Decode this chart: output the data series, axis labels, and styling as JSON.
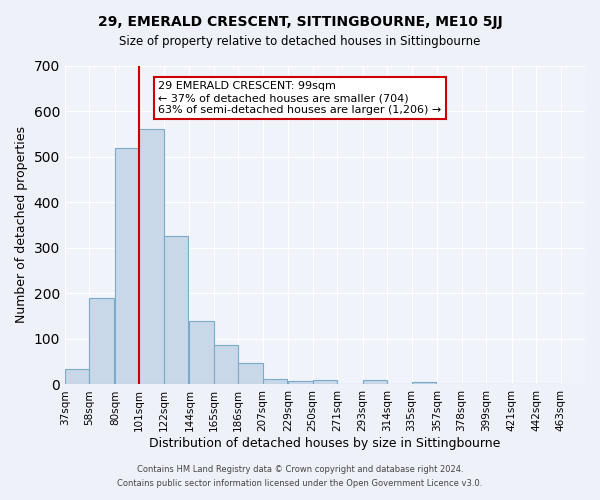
{
  "title": "29, EMERALD CRESCENT, SITTINGBOURNE, ME10 5JJ",
  "subtitle": "Size of property relative to detached houses in Sittingbourne",
  "xlabel": "Distribution of detached houses by size in Sittingbourne",
  "ylabel": "Number of detached properties",
  "bin_labels": [
    "37sqm",
    "58sqm",
    "80sqm",
    "101sqm",
    "122sqm",
    "144sqm",
    "165sqm",
    "186sqm",
    "207sqm",
    "229sqm",
    "250sqm",
    "271sqm",
    "293sqm",
    "314sqm",
    "335sqm",
    "357sqm",
    "378sqm",
    "399sqm",
    "421sqm",
    "442sqm",
    "463sqm"
  ],
  "bin_edges": [
    37,
    58,
    80,
    101,
    122,
    144,
    165,
    186,
    207,
    229,
    250,
    271,
    293,
    314,
    335,
    357,
    378,
    399,
    421,
    442,
    463
  ],
  "bar_heights": [
    33,
    190,
    520,
    560,
    325,
    140,
    87,
    47,
    13,
    8,
    10,
    0,
    10,
    0,
    5,
    0,
    0,
    0,
    0,
    0
  ],
  "bar_color": "#c8d8e8",
  "bar_edge_color": "#7aaac8",
  "vline_x": 101,
  "vline_color": "#cc0000",
  "ylim": [
    0,
    700
  ],
  "yticks": [
    0,
    100,
    200,
    300,
    400,
    500,
    600,
    700
  ],
  "annotation_text": "29 EMERALD CRESCENT: 99sqm\n← 37% of detached houses are smaller (704)\n63% of semi-detached houses are larger (1,206) →",
  "annotation_box_edge_color": "#cc0000",
  "annotation_box_face_color": "#ffffff",
  "footer_line1": "Contains HM Land Registry data © Crown copyright and database right 2024.",
  "footer_line2": "Contains public sector information licensed under the Open Government Licence v3.0.",
  "bg_color": "#eef2f8",
  "plot_bg_color": "#f0f4fa"
}
